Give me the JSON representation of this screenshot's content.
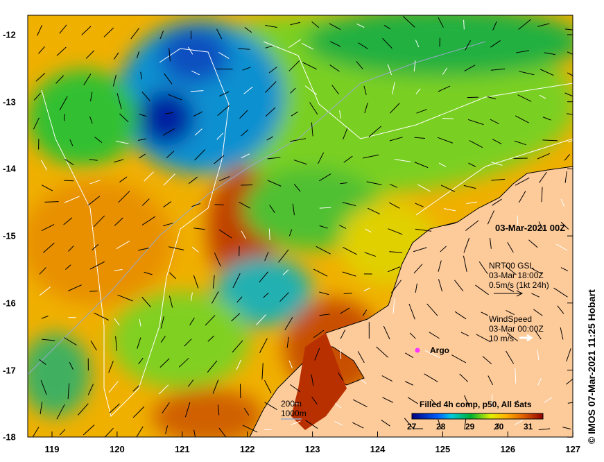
{
  "date_label": "03-Mar-2021 00Z",
  "current_legend": {
    "line1": "NRT00 GSL",
    "line2": "03-Mar 18:00Z",
    "line3": "0.5m/s (1kt 24h)"
  },
  "wind_legend": {
    "line1": "WindSpeed",
    "line2": "03-Mar 00:00Z",
    "line3": "10 m/s"
  },
  "argo_label": "Argo",
  "bathy_legend": {
    "depth1": "200m",
    "depth2": "1000m"
  },
  "colorbar": {
    "title": "Filled 4h comp, p50, All Sats",
    "ticks": [
      "27",
      "28",
      "29",
      "30",
      "31"
    ],
    "range": [
      27,
      31.5
    ]
  },
  "x_ticks": [
    "119",
    "120",
    "121",
    "122",
    "123",
    "124",
    "125",
    "126",
    "127"
  ],
  "y_ticks": [
    "-12",
    "-13",
    "-14",
    "-15",
    "-16",
    "-17",
    "-18"
  ],
  "credit": "© IMOS 07-Mar-2021 11:25 Hobart",
  "colors": {
    "land": "#fdca9a",
    "argo": "#ff33ff"
  }
}
